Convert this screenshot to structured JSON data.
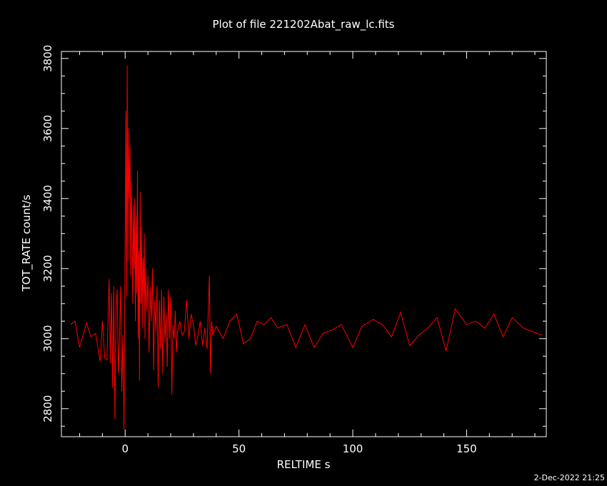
{
  "chart_data": {
    "type": "line",
    "title": "Plot of file 221202Abat_raw_lc.fits",
    "xlabel": "RELTIME  s",
    "ylabel": "TOT_RATE  count/s",
    "xlim": [
      -28,
      185
    ],
    "ylim": [
      2720,
      3820
    ],
    "x_ticks": [
      "0",
      "50",
      "100",
      "150"
    ],
    "y_ticks": [
      "2800",
      "3000",
      "3200",
      "3400",
      "3600",
      "3800"
    ],
    "grid": false,
    "legend": "none",
    "line_color": "#ff0000",
    "axis_color": "#ffffff",
    "background": "#000000",
    "series": [
      {
        "x": [
          -24.0,
          -22.0,
          -20.0,
          -17.0,
          -15.0,
          -13.0,
          -11.0,
          -10.0,
          -9.0,
          -8.0,
          -7.0,
          -6.5,
          -6.0,
          -5.5,
          -5.0,
          -4.5,
          -4.0,
          -3.5,
          -3.0,
          -2.5,
          -2.0,
          -1.5,
          -1.0,
          -0.5,
          0.0,
          0.3,
          0.6,
          0.9,
          1.2,
          1.5,
          1.8,
          2.1,
          2.4,
          2.7,
          3.0,
          3.3,
          3.6,
          3.9,
          4.2,
          4.5,
          4.8,
          5.1,
          5.4,
          5.7,
          6.0,
          6.3,
          6.6,
          6.9,
          7.2,
          7.5,
          7.8,
          8.1,
          8.4,
          8.7,
          9.0,
          9.5,
          10.0,
          10.5,
          11.0,
          11.5,
          12.0,
          12.5,
          13.0,
          13.5,
          14.0,
          14.5,
          15.0,
          15.5,
          16.0,
          16.5,
          17.0,
          17.5,
          18.0,
          18.5,
          19.0,
          19.5,
          20.0,
          20.5,
          21.0,
          21.5,
          22.0,
          22.5,
          23.0,
          24.0,
          25.0,
          26.0,
          27.0,
          28.0,
          29.0,
          30.0,
          31.0,
          32.0,
          33.0,
          34.0,
          35.0,
          36.0,
          37.0,
          37.5,
          38.0,
          38.5,
          40.0,
          43.0,
          46.0,
          49.0,
          52.0,
          55.0,
          58.0,
          61.0,
          64.0,
          67.0,
          71.0,
          75.0,
          79.0,
          83.0,
          87.0,
          91.0,
          95.0,
          100.0,
          104.0,
          109.0,
          113.0,
          117.0,
          121.0,
          125.0,
          129.0,
          133.0,
          137.0,
          141.0,
          145.0,
          150.0,
          154.0,
          158.0,
          162.0,
          166.0,
          170.0,
          175.0,
          183.0
        ],
        "y": [
          3040,
          3050,
          2975,
          3045,
          3005,
          3015,
          2935,
          3050,
          2945,
          2940,
          3170,
          2930,
          3130,
          2860,
          3150,
          2770,
          3080,
          3140,
          2900,
          3000,
          3150,
          2850,
          3010,
          2740,
          3300,
          3650,
          3120,
          3780,
          3220,
          3600,
          3400,
          3550,
          3180,
          3450,
          3300,
          3100,
          3380,
          3200,
          3400,
          3050,
          3350,
          3130,
          3480,
          3000,
          3250,
          2880,
          3420,
          3100,
          3320,
          3030,
          3230,
          3130,
          3300,
          3000,
          3200,
          3080,
          3180,
          2960,
          3150,
          3050,
          3200,
          2910,
          3110,
          3020,
          3150,
          2860,
          3110,
          2970,
          3140,
          2900,
          3120,
          2990,
          3070,
          2920,
          3140,
          3000,
          3120,
          2840,
          3040,
          3000,
          3080,
          2960,
          3020,
          3050,
          3010,
          3020,
          3110,
          3000,
          3070,
          3040,
          2980,
          3010,
          3050,
          2980,
          3030,
          2970,
          3180,
          2900,
          3050,
          3010,
          3035,
          3000,
          3050,
          3070,
          2985,
          3000,
          3050,
          3040,
          3060,
          3030,
          3040,
          2975,
          3040,
          2975,
          3015,
          3025,
          3040,
          2975,
          3035,
          3055,
          3040,
          3005,
          3075,
          2980,
          3010,
          3030,
          3060,
          2965,
          3085,
          3040,
          3050,
          3030,
          3070,
          3005,
          3060,
          3030,
          3010
        ]
      }
    ]
  },
  "footer": {
    "timestamp": "2-Dec-2022 21:25"
  }
}
